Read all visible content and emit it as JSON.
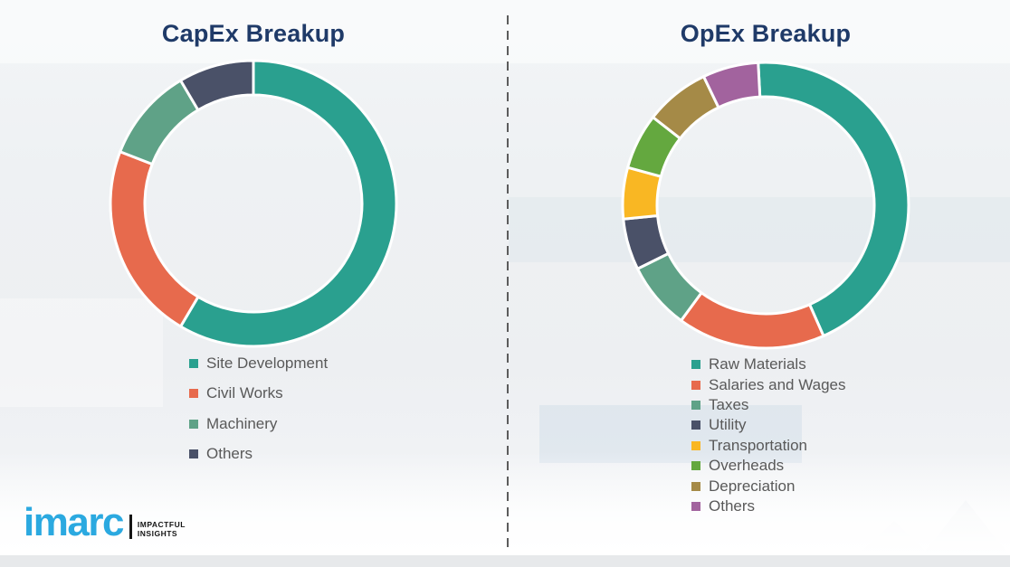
{
  "page": {
    "background_color": "#EFF1F4",
    "footer_strip_color": "#E7E9EB"
  },
  "chart_data": [
    {
      "type": "pie",
      "subtype": "donut",
      "title": "CapEx Breakup",
      "labels": [
        "Site Development",
        "Civil Works",
        "Machinery",
        "Others"
      ],
      "values": [
        58.5,
        22.4,
        10.6,
        8.5
      ],
      "colors": [
        "#2AA08F",
        "#E76A4D",
        "#5FA287",
        "#4A5168"
      ],
      "start_angle": 0,
      "direction": "clockwise",
      "legend_position": "below-chart-left",
      "data_labels": false
    },
    {
      "type": "pie",
      "subtype": "donut",
      "title": "OpEx Breakup",
      "labels": [
        "Raw Materials",
        "Salaries and Wages",
        "Taxes",
        "Utility",
        "Transportation",
        "Overheads",
        "Depreciation",
        "Others"
      ],
      "values": [
        44.2,
        16.7,
        7.6,
        5.8,
        5.8,
        6.3,
        7.3,
        6.3
      ],
      "colors": [
        "#2AA08F",
        "#E76A4D",
        "#5FA287",
        "#4A5168",
        "#F9B723",
        "#64A83F",
        "#A58A47",
        "#A2639E"
      ],
      "start_angle": -3,
      "direction": "clockwise",
      "legend_position": "below-chart-left",
      "data_labels": false
    }
  ],
  "branding": {
    "logo_text": "imarc",
    "tagline_line1": "IMPACTFUL",
    "tagline_line2": "INSIGHTS",
    "logo_color": "#2BA9E0"
  },
  "styles": {
    "title_color": "#1F3A68",
    "legend_text_color": "#595959",
    "divider_color": "#5C5C5C",
    "segment_separator_color": "#FFFFFF"
  }
}
